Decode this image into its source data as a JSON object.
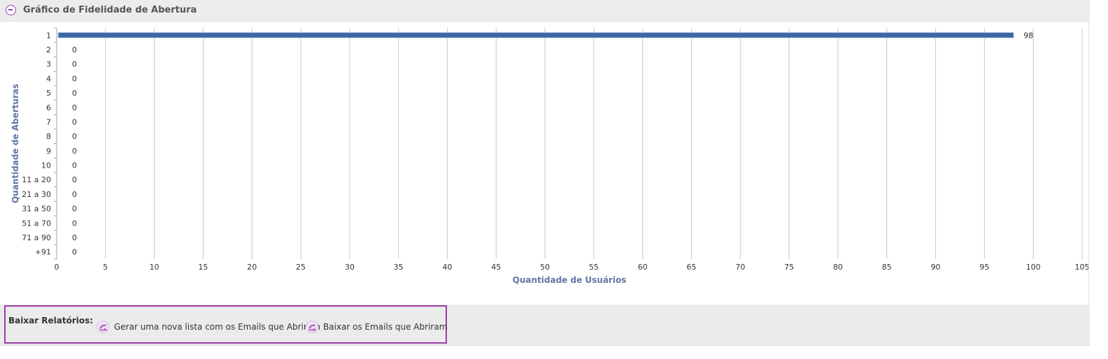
{
  "panel": {
    "title": "Gráfico de Fidelidade de Abertura"
  },
  "chart_data": {
    "type": "bar",
    "orientation": "horizontal",
    "categories": [
      "1",
      "2",
      "3",
      "4",
      "5",
      "6",
      "7",
      "8",
      "9",
      "10",
      "11 a 20",
      "21 a 30",
      "31 a 50",
      "51 a 70",
      "71 a 90",
      "+91"
    ],
    "values": [
      98,
      0,
      0,
      0,
      0,
      0,
      0,
      0,
      0,
      0,
      0,
      0,
      0,
      0,
      0,
      0
    ],
    "xlabel": "Quantidade de Usuários",
    "ylabel": "Quantidade de Aberturas",
    "xlim": [
      0,
      105
    ],
    "xticks": [
      0,
      5,
      10,
      15,
      20,
      25,
      30,
      35,
      40,
      45,
      50,
      55,
      60,
      65,
      70,
      75,
      80,
      85,
      90,
      95,
      100,
      105
    ],
    "grid": "vertical",
    "legend": "none",
    "bar_color": "#3d68a6"
  },
  "reports": {
    "label": "Baixar Relatórios:",
    "links": [
      {
        "label": "Gerar uma nova lista com os Emails que Abriram",
        "icon": "download-icon"
      },
      {
        "label": "Baixar os Emails que Abriram",
        "icon": "download-icon"
      }
    ]
  }
}
